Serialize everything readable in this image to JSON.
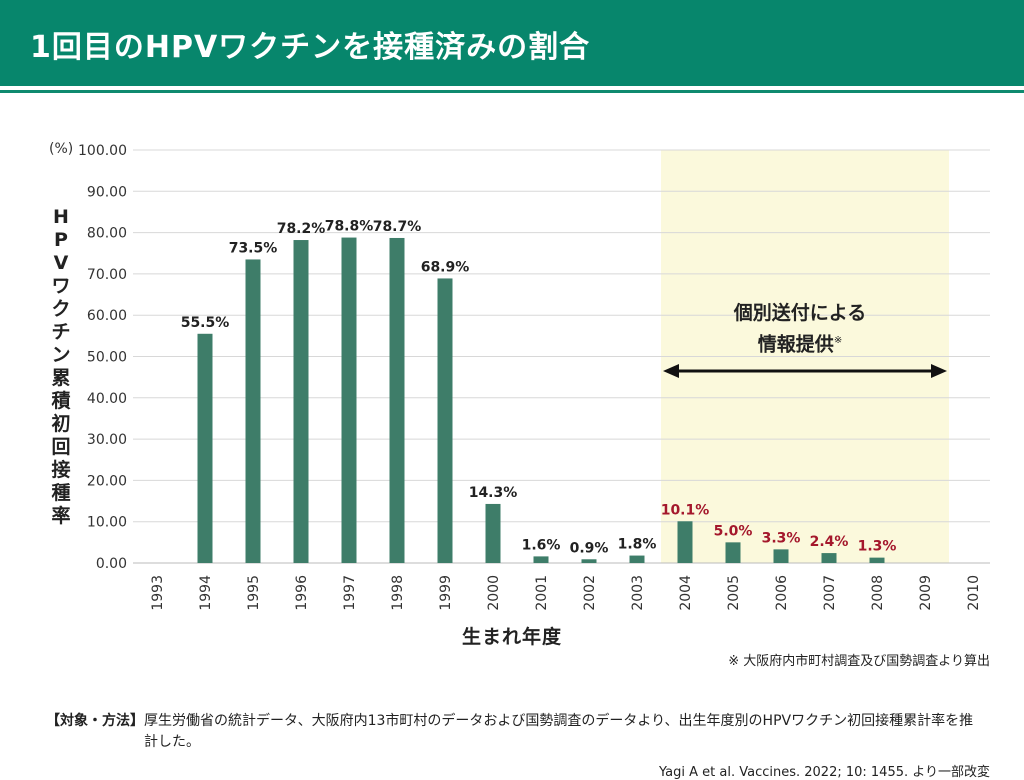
{
  "header": {
    "title": "1回目のHPVワクチンを接種済みの割合"
  },
  "chart_data": {
    "type": "bar",
    "categories": [
      "1993",
      "1994",
      "1995",
      "1996",
      "1997",
      "1998",
      "1999",
      "2000",
      "2001",
      "2002",
      "2003",
      "2004",
      "2005",
      "2006",
      "2007",
      "2008",
      "2009",
      "2010"
    ],
    "values": [
      null,
      55.5,
      73.5,
      78.2,
      78.8,
      78.7,
      68.9,
      14.3,
      1.6,
      0.9,
      1.8,
      10.1,
      5.0,
      3.3,
      2.4,
      1.3,
      null,
      null
    ],
    "data_labels": [
      "",
      "55.5%",
      "73.5%",
      "78.2%",
      "78.8%",
      "78.7%",
      "68.9%",
      "14.3%",
      "1.6%",
      "0.9%",
      "1.8%",
      "10.1%",
      "5.0%",
      "3.3%",
      "2.4%",
      "1.3%",
      "",
      ""
    ],
    "ylim": [
      0,
      100
    ],
    "yticks": [
      "0.00",
      "10.00",
      "20.00",
      "30.00",
      "40.00",
      "50.00",
      "60.00",
      "70.00",
      "80.00",
      "90.00",
      "100.00"
    ],
    "y_unit": "(%)",
    "ylabel": "HPVワクチン累積初回接種率",
    "xlabel": "生まれ年度",
    "grid": true,
    "colors": {
      "bar": "#3e7d69",
      "label_normal": "#222222",
      "label_highlight": "#a4182c",
      "highlight_band": "#fbf9dc"
    },
    "highlight": {
      "from": "2004",
      "to": "2009",
      "label_line1": "個別送付による",
      "label_line2": "情報提供",
      "label_mark": "※"
    }
  },
  "footnote": "※ 大阪府内市町村調査及び国勢調査より算出",
  "method": {
    "label": "【対象・方法】",
    "text": "厚生労働省の統計データ、大阪府内13市町村のデータおよび国勢調査のデータより、出生年度別のHPVワクチン初回接種累計率を推計した。"
  },
  "citation": "Yagi A et al. Vaccines. 2022; 10: 1455. より一部改変"
}
